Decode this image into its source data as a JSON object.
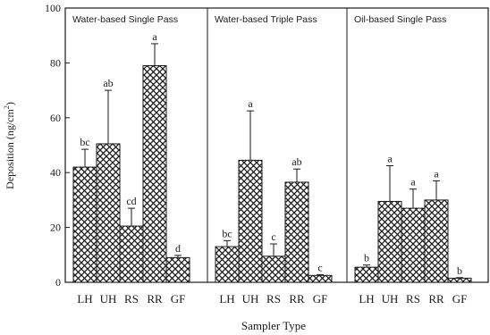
{
  "chart_data": {
    "type": "bar",
    "ylabel": "Deposition (ng/cm²)",
    "ylabel_base": "Deposition (ng/cm",
    "ylabel_sup": "2",
    "ylabel_tail": ")",
    "xlabel": "Sampler Type",
    "ylim": [
      0,
      100
    ],
    "yticks": [
      "0",
      "20",
      "40",
      "60",
      "80",
      "100"
    ],
    "categories": [
      "LH",
      "UH",
      "RS",
      "RR",
      "GF"
    ],
    "bar_pattern": "cross-hatch",
    "panels": [
      {
        "title": "Water-based Single Pass",
        "values": [
          42,
          50.5,
          20.5,
          79,
          9
        ],
        "errors": [
          6.5,
          19.5,
          6.5,
          8,
          0.8
        ],
        "letters": [
          "bc",
          "ab",
          "cd",
          "a",
          "d"
        ]
      },
      {
        "title": "Water-based Triple Pass",
        "values": [
          13,
          44.5,
          9.5,
          36.5,
          2.5
        ],
        "errors": [
          2.2,
          18,
          4.5,
          4.8,
          0.3
        ],
        "letters": [
          "bc",
          "a",
          "c",
          "ab",
          "c"
        ]
      },
      {
        "title": "Oil-based Single Pass",
        "values": [
          5.5,
          29.5,
          27,
          30,
          1.5
        ],
        "errors": [
          0.8,
          13,
          7,
          7,
          0.2
        ],
        "letters": [
          "b",
          "a",
          "a",
          "a",
          "b"
        ]
      }
    ]
  }
}
